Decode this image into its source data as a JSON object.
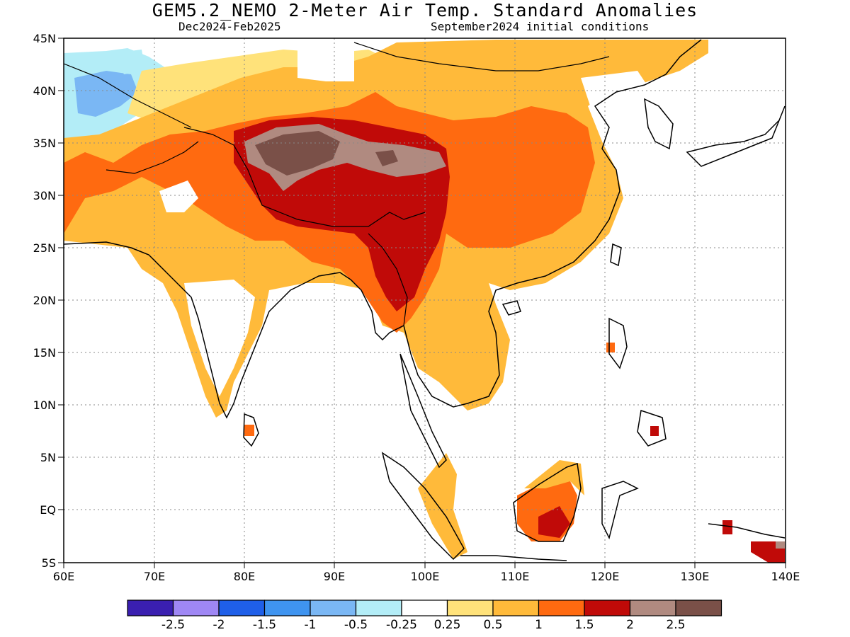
{
  "title": "GEM5.2_NEMO 2-Meter Air Temp. Standard Anomalies",
  "subtitle_left": "Dec2024-Feb2025",
  "subtitle_right": "September2024 initial conditions",
  "map": {
    "lon_range": [
      60,
      140
    ],
    "lat_range": [
      -5,
      45
    ],
    "lon_ticks": [
      "60E",
      "70E",
      "80E",
      "90E",
      "100E",
      "110E",
      "120E",
      "130E",
      "140E"
    ],
    "lat_ticks": [
      "45N",
      "40N",
      "35N",
      "30N",
      "25N",
      "20N",
      "15N",
      "10N",
      "5N",
      "EQ",
      "5S"
    ],
    "grid": "dotted"
  },
  "legend": {
    "colors": [
      "#3a1fb0",
      "#9f87f4",
      "#1f5fe8",
      "#3f94f0",
      "#7ab7f4",
      "#b3edf7",
      "#ffffff",
      "#ffe27a",
      "#ffba3a",
      "#ff6a10",
      "#c00a08",
      "#b08a80",
      "#7a5048"
    ],
    "labels": [
      "-2.5",
      "-2",
      "-1.5",
      "-1",
      "-0.5",
      "-0.25",
      "0.25",
      "0.5",
      "1",
      "1.5",
      "2",
      "2.5"
    ]
  },
  "colors": {
    "land_outline": "#000000",
    "grid": "#888888"
  }
}
